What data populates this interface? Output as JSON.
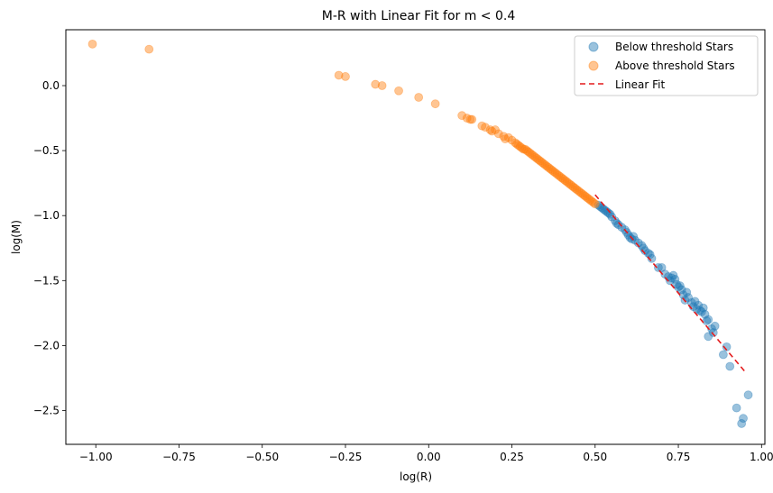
{
  "chart_data": {
    "type": "scatter",
    "title": "M-R with Linear Fit for m < 0.4",
    "xlabel": "log(R)",
    "ylabel": "log(M)",
    "xlim": [
      -1.09,
      1.01
    ],
    "ylim": [
      -2.76,
      0.43
    ],
    "xticks": [
      -1.0,
      -0.75,
      -0.5,
      -0.25,
      0.0,
      0.25,
      0.5,
      0.75,
      1.0
    ],
    "xtick_labels": [
      "−1.00",
      "−0.75",
      "−0.50",
      "−0.25",
      "0.00",
      "0.25",
      "0.50",
      "0.75",
      "1.00"
    ],
    "yticks": [
      0.0,
      -0.5,
      -1.0,
      -1.5,
      -2.0,
      -2.5
    ],
    "ytick_labels": [
      "0.0",
      "−0.5",
      "−1.0",
      "−1.5",
      "−2.0",
      "−2.5"
    ],
    "grid": false,
    "legend_position": "top-right",
    "series": [
      {
        "name": "Below threshold Stars",
        "kind": "scatter",
        "color": "#1f77b4",
        "alpha": 0.45,
        "points": [
          [
            0.51,
            -0.92
          ],
          [
            0.515,
            -0.93
          ],
          [
            0.52,
            -0.94
          ],
          [
            0.525,
            -0.95
          ],
          [
            0.53,
            -0.96
          ],
          [
            0.535,
            -0.97
          ],
          [
            0.54,
            -0.98
          ],
          [
            0.545,
            -0.99
          ],
          [
            0.55,
            -1.01
          ],
          [
            0.56,
            -1.04
          ],
          [
            0.565,
            -1.06
          ],
          [
            0.57,
            -1.07
          ],
          [
            0.58,
            -1.09
          ],
          [
            0.59,
            -1.11
          ],
          [
            0.595,
            -1.13
          ],
          [
            0.6,
            -1.15
          ],
          [
            0.605,
            -1.17
          ],
          [
            0.61,
            -1.18
          ],
          [
            0.615,
            -1.16
          ],
          [
            0.62,
            -1.19
          ],
          [
            0.63,
            -1.21
          ],
          [
            0.64,
            -1.23
          ],
          [
            0.645,
            -1.25
          ],
          [
            0.65,
            -1.27
          ],
          [
            0.66,
            -1.29
          ],
          [
            0.665,
            -1.3
          ],
          [
            0.67,
            -1.33
          ],
          [
            0.69,
            -1.4
          ],
          [
            0.7,
            -1.4
          ],
          [
            0.71,
            -1.45
          ],
          [
            0.72,
            -1.47
          ],
          [
            0.725,
            -1.5
          ],
          [
            0.73,
            -1.48
          ],
          [
            0.735,
            -1.46
          ],
          [
            0.74,
            -1.49
          ],
          [
            0.745,
            -1.53
          ],
          [
            0.75,
            -1.55
          ],
          [
            0.755,
            -1.54
          ],
          [
            0.76,
            -1.57
          ],
          [
            0.765,
            -1.61
          ],
          [
            0.77,
            -1.65
          ],
          [
            0.775,
            -1.59
          ],
          [
            0.78,
            -1.63
          ],
          [
            0.79,
            -1.67
          ],
          [
            0.795,
            -1.7
          ],
          [
            0.8,
            -1.66
          ],
          [
            0.805,
            -1.72
          ],
          [
            0.81,
            -1.69
          ],
          [
            0.815,
            -1.73
          ],
          [
            0.82,
            -1.74
          ],
          [
            0.825,
            -1.71
          ],
          [
            0.83,
            -1.76
          ],
          [
            0.835,
            -1.81
          ],
          [
            0.84,
            -1.8
          ],
          [
            0.84,
            -1.93
          ],
          [
            0.85,
            -1.87
          ],
          [
            0.855,
            -1.9
          ],
          [
            0.86,
            -1.85
          ],
          [
            0.885,
            -2.07
          ],
          [
            0.895,
            -2.01
          ],
          [
            0.905,
            -2.16
          ],
          [
            0.925,
            -2.48
          ],
          [
            0.94,
            -2.6
          ],
          [
            0.945,
            -2.56
          ],
          [
            0.96,
            -2.38
          ]
        ]
      },
      {
        "name": "Above threshold Stars",
        "kind": "scatter",
        "color": "#ff7f0e",
        "alpha": 0.45,
        "points": [
          [
            -1.01,
            0.32
          ],
          [
            -0.84,
            0.28
          ],
          [
            -0.27,
            0.08
          ],
          [
            -0.25,
            0.07
          ],
          [
            -0.16,
            0.01
          ],
          [
            -0.14,
            0.0
          ],
          [
            -0.09,
            -0.04
          ],
          [
            -0.03,
            -0.09
          ],
          [
            0.02,
            -0.14
          ],
          [
            0.1,
            -0.23
          ],
          [
            0.115,
            -0.25
          ],
          [
            0.125,
            -0.26
          ],
          [
            0.13,
            -0.26
          ],
          [
            0.16,
            -0.31
          ],
          [
            0.17,
            -0.32
          ],
          [
            0.185,
            -0.34
          ],
          [
            0.19,
            -0.35
          ],
          [
            0.2,
            -0.34
          ],
          [
            0.21,
            -0.37
          ],
          [
            0.225,
            -0.39
          ],
          [
            0.23,
            -0.41
          ],
          [
            0.24,
            -0.4
          ],
          [
            0.25,
            -0.42
          ],
          [
            0.26,
            -0.44
          ],
          [
            0.265,
            -0.45
          ],
          [
            0.27,
            -0.46
          ],
          [
            0.275,
            -0.47
          ],
          [
            0.28,
            -0.48
          ],
          [
            0.285,
            -0.49
          ],
          [
            0.29,
            -0.49
          ],
          [
            0.295,
            -0.5
          ],
          [
            0.3,
            -0.51
          ],
          [
            0.305,
            -0.52
          ],
          [
            0.31,
            -0.53
          ],
          [
            0.315,
            -0.54
          ],
          [
            0.32,
            -0.55
          ],
          [
            0.325,
            -0.56
          ],
          [
            0.33,
            -0.57
          ],
          [
            0.335,
            -0.58
          ],
          [
            0.34,
            -0.59
          ],
          [
            0.345,
            -0.6
          ],
          [
            0.35,
            -0.61
          ],
          [
            0.355,
            -0.62
          ],
          [
            0.36,
            -0.63
          ],
          [
            0.365,
            -0.64
          ],
          [
            0.37,
            -0.65
          ],
          [
            0.375,
            -0.66
          ],
          [
            0.38,
            -0.67
          ],
          [
            0.385,
            -0.68
          ],
          [
            0.39,
            -0.69
          ],
          [
            0.395,
            -0.7
          ],
          [
            0.4,
            -0.71
          ],
          [
            0.405,
            -0.72
          ],
          [
            0.41,
            -0.73
          ],
          [
            0.415,
            -0.74
          ],
          [
            0.42,
            -0.75
          ],
          [
            0.425,
            -0.76
          ],
          [
            0.43,
            -0.77
          ],
          [
            0.435,
            -0.78
          ],
          [
            0.44,
            -0.79
          ],
          [
            0.445,
            -0.8
          ],
          [
            0.45,
            -0.81
          ],
          [
            0.455,
            -0.82
          ],
          [
            0.46,
            -0.83
          ],
          [
            0.465,
            -0.84
          ],
          [
            0.47,
            -0.85
          ],
          [
            0.475,
            -0.86
          ],
          [
            0.48,
            -0.87
          ],
          [
            0.485,
            -0.88
          ],
          [
            0.49,
            -0.89
          ],
          [
            0.495,
            -0.9
          ],
          [
            0.5,
            -0.91
          ]
        ]
      },
      {
        "name": "Linear Fit",
        "kind": "line",
        "color": "#e41a1c",
        "dash": "6,4",
        "x": [
          0.5,
          0.95
        ],
        "y": [
          -0.84,
          -2.2
        ]
      }
    ]
  }
}
